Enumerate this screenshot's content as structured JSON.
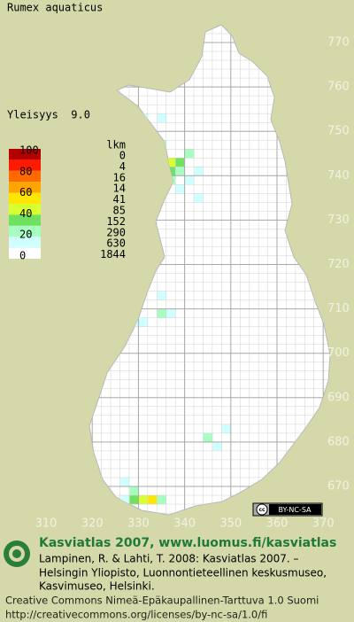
{
  "title": "Rumex aquaticus",
  "frequency": "Yleisyys  9.0",
  "legend": {
    "percent_labels": [
      100,
      80,
      60,
      40,
      20,
      0
    ],
    "count_header": "lkm",
    "counts": [
      0,
      4,
      16,
      14,
      41,
      85,
      152,
      290,
      630,
      1844
    ],
    "colors": [
      "#b40000",
      "#ff1a00",
      "#ff6a00",
      "#ffa500",
      "#ffe600",
      "#d8ff30",
      "#6fe060",
      "#a6ffc0",
      "#d0ffff",
      "#ffffff"
    ]
  },
  "axes": {
    "y_labels": [
      770,
      760,
      750,
      740,
      730,
      720,
      710,
      700,
      690,
      680,
      670
    ],
    "x_labels": [
      310,
      320,
      330,
      340,
      350,
      360,
      370
    ]
  },
  "license_badge": "BY-NC-SA",
  "footer": {
    "heading": "Kasviatlas 2007, www.luomus.fi/kasviatlas",
    "citation": [
      "Lampinen, R. & Lahti, T. 2008: Kasviatlas 2007. –",
      "Helsingin Yliopisto, Luonnontieteellinen keskusmuseo,",
      "Kasvimuseo, Helsinki."
    ],
    "license": [
      "Creative Commons Nimeä-Epäkaupallinen-Tarttuva 1.0 Suomi",
      "http://creativecommons.org/licenses/by-nc-sa/1.0/fi"
    ]
  }
}
